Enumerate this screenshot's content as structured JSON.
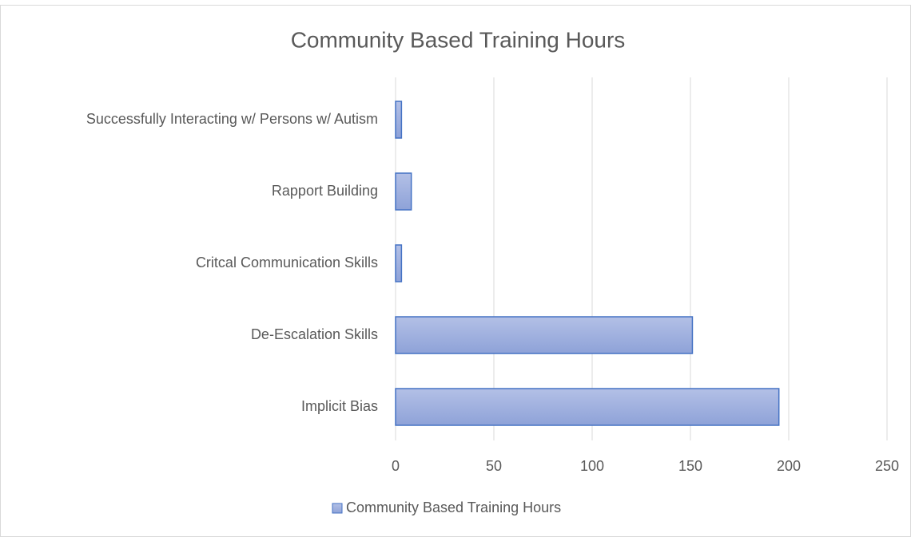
{
  "chart_data": {
    "type": "barh",
    "title": "Community Based Training Hours",
    "categories": [
      "Implicit Bias",
      "De-Escalation Skills",
      "Critcal Communication Skills",
      "Rapport Building",
      "Successfully Interacting w/ Persons w/ Autism"
    ],
    "series": [
      {
        "name": "Community Based Training Hours",
        "color": "#4472c4",
        "values": [
          195,
          151,
          3,
          8,
          3
        ]
      }
    ],
    "xlim": [
      0,
      250
    ],
    "xticks": [
      0,
      50,
      100,
      150,
      200,
      250
    ],
    "grid": true,
    "legend": "bottom"
  }
}
